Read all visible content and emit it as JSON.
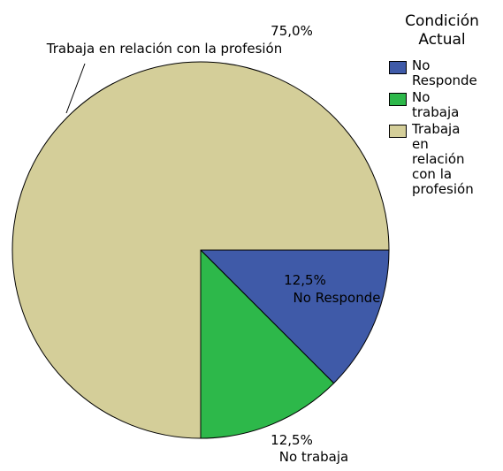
{
  "chart_data": {
    "type": "pie",
    "legend_title": "Condición Actual",
    "categories": [
      "No Responde",
      "No trabaja",
      "Trabaja en relación con la profesión"
    ],
    "values": [
      12.5,
      12.5,
      75
    ],
    "value_labels": [
      "12,5%",
      "12,5%",
      "75,0%"
    ],
    "colors": [
      "#3f5aa8",
      "#2db84a",
      "#d4ce99"
    ],
    "legend": "right"
  }
}
